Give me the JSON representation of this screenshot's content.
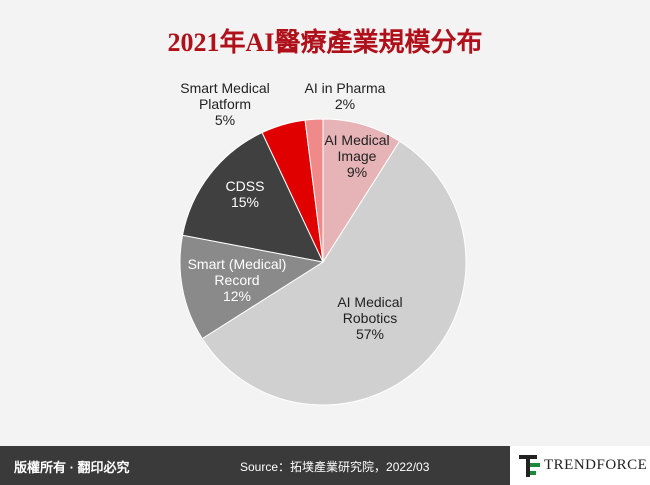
{
  "chart_data": {
    "type": "pie",
    "title": "2021年AI醫療產業規模分布",
    "categories": [
      "AI Medical Image",
      "AI Medical Robotics",
      "Smart (Medical) Record",
      "CDSS",
      "Smart Medical Platform",
      "AI in Pharma"
    ],
    "values": [
      9,
      57,
      12,
      15,
      5,
      2
    ],
    "value_labels": [
      "9%",
      "57%",
      "12%",
      "15%",
      "5%",
      "2%"
    ],
    "colors": [
      "#e6b3b6",
      "#d0d0d0",
      "#8a8a8a",
      "#404040",
      "#e00000",
      "#f08a8a"
    ]
  },
  "footer": {
    "copyright": "版權所有 · 翻印必究",
    "source": "Source：拓墣產業研究院，2022/03",
    "logo": "TRENDFORCE"
  }
}
